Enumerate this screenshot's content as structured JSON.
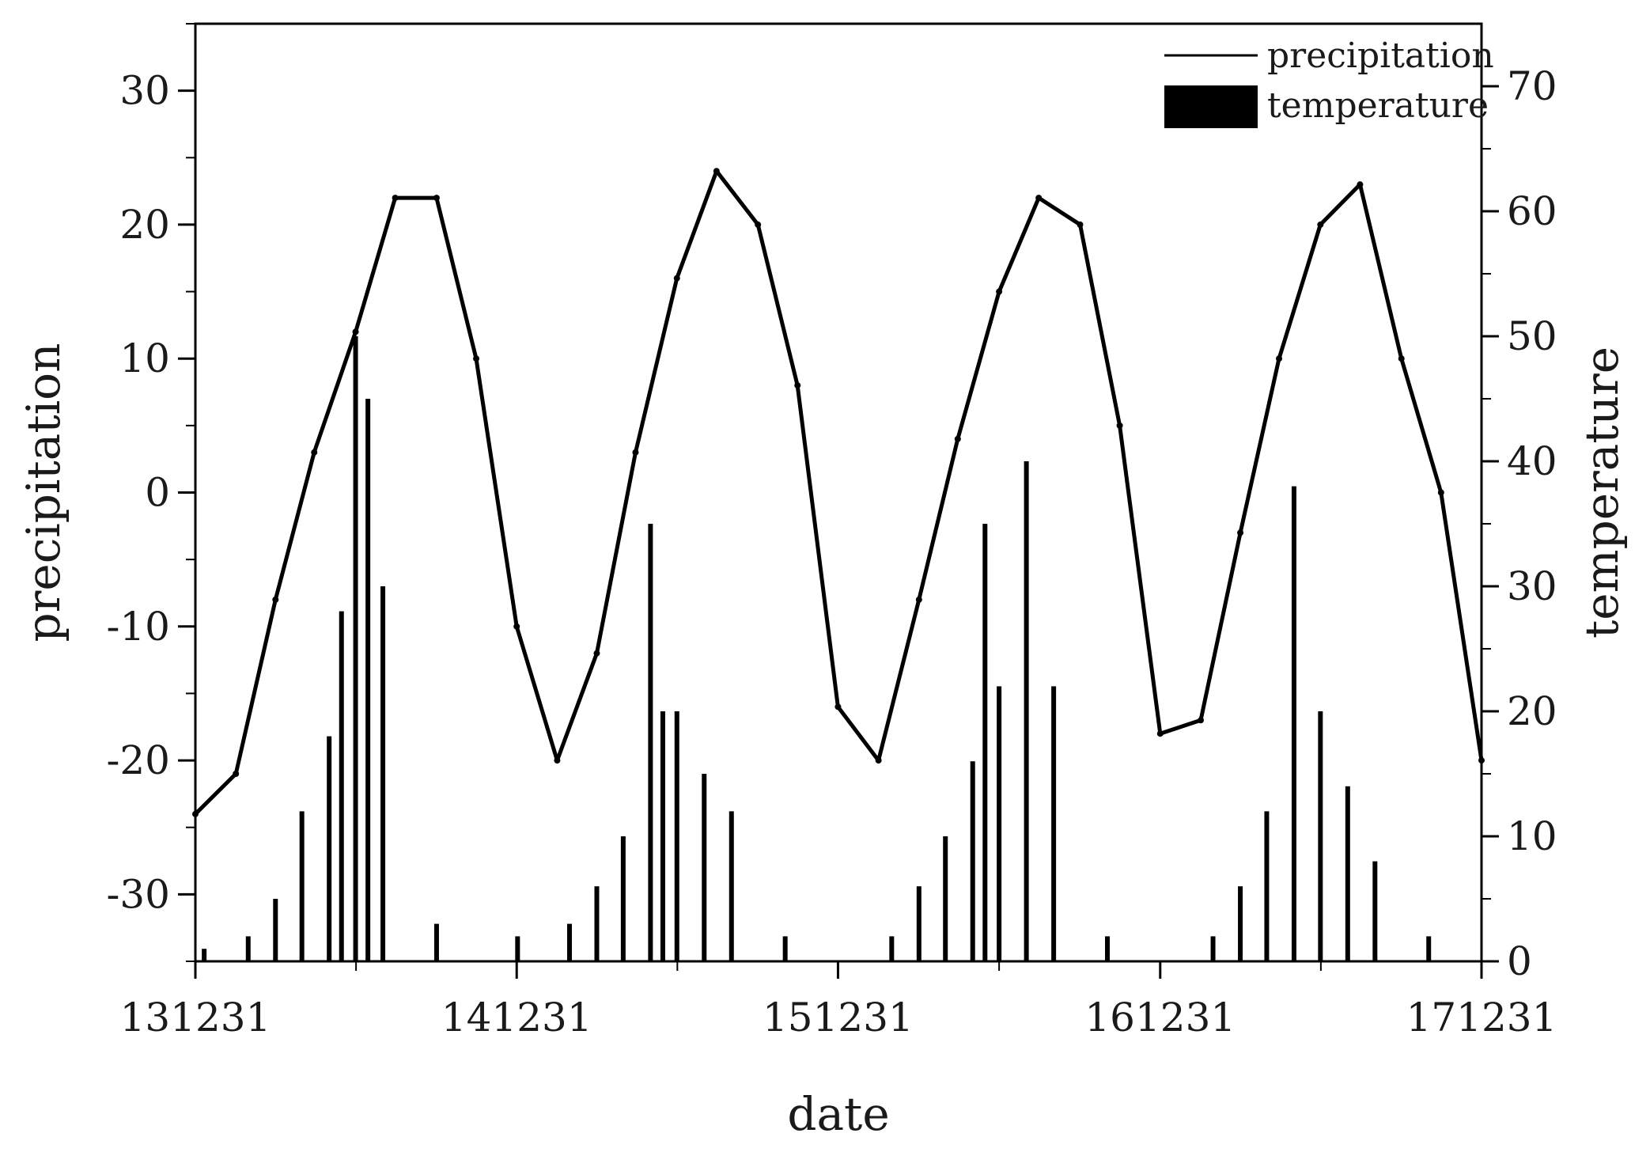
{
  "chart_data": {
    "type": "line",
    "xlabel": "date",
    "x_tick_labels": [
      "131231",
      "141231",
      "151231",
      "161231",
      "171231"
    ],
    "y_left": {
      "label": "precipitation",
      "lim": [
        -35,
        35
      ],
      "ticks": [
        -30,
        -20,
        -10,
        0,
        10,
        20,
        30
      ],
      "tick_labels": [
        "-30",
        "-20",
        "-10",
        "0",
        "10",
        "20",
        "30"
      ]
    },
    "y_right": {
      "label": "temperature",
      "lim": [
        0,
        75
      ],
      "ticks": [
        0,
        10,
        20,
        30,
        40,
        50,
        60,
        70
      ],
      "tick_labels": [
        "0",
        "10",
        "20",
        "30",
        "40",
        "50",
        "60",
        "70"
      ]
    },
    "legend_position": "top-right",
    "grid": false,
    "series": [
      {
        "name": "precipitation",
        "style": "line",
        "axis": "left",
        "color": "#000000",
        "x": [
          "131231",
          "140215",
          "140401",
          "140515",
          "140701",
          "140815",
          "141001",
          "141115",
          "141231",
          "150215",
          "150401",
          "150515",
          "150701",
          "150815",
          "151001",
          "151115",
          "151231",
          "160215",
          "160401",
          "160515",
          "160701",
          "160815",
          "161001",
          "161115",
          "161231",
          "170215",
          "170401",
          "170515",
          "170701",
          "170815",
          "171001",
          "171115",
          "171231"
        ],
        "values": [
          -24,
          -21,
          -8,
          3,
          12,
          22,
          22,
          10,
          -10,
          -20,
          -12,
          3,
          16,
          24,
          20,
          8,
          -16,
          -20,
          -8,
          4,
          15,
          22,
          20,
          5,
          -18,
          -17,
          -3,
          10,
          20,
          23,
          10,
          0,
          -20
        ]
      },
      {
        "name": "temperature",
        "style": "bar",
        "axis": "right",
        "color": "#000000",
        "x": [
          "140110",
          "140301",
          "140401",
          "140501",
          "140601",
          "140615",
          "140701",
          "140715",
          "140801",
          "141001",
          "150101",
          "150301",
          "150401",
          "150501",
          "150601",
          "150615",
          "150701",
          "150801",
          "150901",
          "151101",
          "160301",
          "160401",
          "160501",
          "160601",
          "160615",
          "160701",
          "160801",
          "160901",
          "161101",
          "170301",
          "170401",
          "170501",
          "170601",
          "170701",
          "170801",
          "170901",
          "171101"
        ],
        "values": [
          1,
          2,
          5,
          12,
          18,
          28,
          50,
          45,
          30,
          3,
          2,
          3,
          6,
          10,
          35,
          20,
          20,
          15,
          12,
          2,
          2,
          6,
          10,
          16,
          35,
          22,
          40,
          22,
          2,
          2,
          6,
          12,
          38,
          20,
          14,
          8,
          2
        ]
      }
    ]
  }
}
